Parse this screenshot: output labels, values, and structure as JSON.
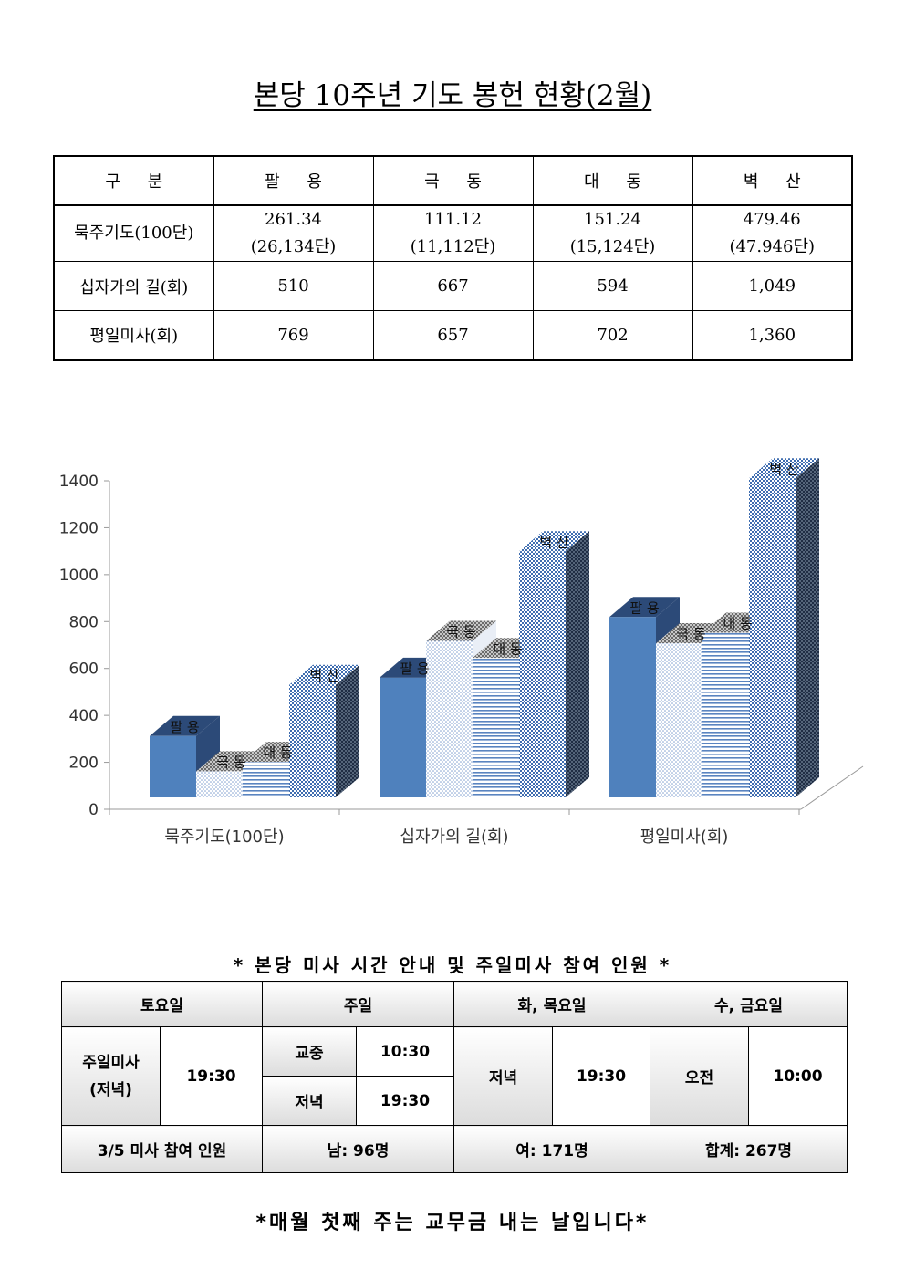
{
  "title": "본당 10주년 기도 봉헌 현황(2월)",
  "stats_table": {
    "headers": [
      "구 분",
      "팔 용",
      "극 동",
      "대 동",
      "벽 산"
    ],
    "rows": [
      {
        "label": "묵주기도(100단)",
        "cells": [
          {
            "value": "261.34",
            "sub": "(26,134단)"
          },
          {
            "value": "111.12",
            "sub": "(11,112단)"
          },
          {
            "value": "151.24",
            "sub": "(15,124단)"
          },
          {
            "value": "479.46",
            "sub": "(47.946단)"
          }
        ]
      },
      {
        "label": "십자가의 길(회)",
        "cells": [
          {
            "value": "510"
          },
          {
            "value": "667"
          },
          {
            "value": "594"
          },
          {
            "value": "1,049"
          }
        ]
      },
      {
        "label": "평일미사(회)",
        "cells": [
          {
            "value": "769"
          },
          {
            "value": "657"
          },
          {
            "value": "702"
          },
          {
            "value": "1,360"
          }
        ]
      }
    ]
  },
  "chart_data": {
    "type": "bar",
    "categories": [
      "묵주기도(100단)",
      "십자가의 길(회)",
      "평일미사(회)"
    ],
    "series": [
      {
        "name": "팔 용",
        "values": [
          261.34,
          510,
          769
        ],
        "color": "#4f81bd"
      },
      {
        "name": "극 동",
        "values": [
          111.12,
          667,
          657
        ],
        "color": "#dbe5f1"
      },
      {
        "name": "대 동",
        "values": [
          151.24,
          594,
          702
        ],
        "color": "#a9c0de"
      },
      {
        "name": "벽 산",
        "values": [
          479.46,
          1049,
          1360
        ],
        "color": "#5a7fb3"
      }
    ],
    "yticks": [
      0,
      200,
      400,
      600,
      800,
      1000,
      1200,
      1400
    ],
    "ylim": [
      0,
      1400
    ],
    "three_d": true,
    "legend": "none"
  },
  "mass_caption": "* 본당 미사 시간 안내 및 주일미사 참여 인원 *",
  "mass_table": {
    "headers": [
      "토요일",
      "주일",
      "화, 목요일",
      "수, 금요일"
    ],
    "saturday": {
      "label": "주일미사\n(저녁)",
      "time": "19:30"
    },
    "sunday": [
      {
        "label": "교중",
        "time": "10:30"
      },
      {
        "label": "저녁",
        "time": "19:30"
      }
    ],
    "tue_thu": {
      "label": "저녁",
      "time": "19:30"
    },
    "wed_fri": {
      "label": "오전",
      "time": "10:00"
    },
    "attendance": {
      "label": "3/5 미사 참여 인원",
      "male": "남: 96명",
      "female": "여: 171명",
      "total": "합계: 267명"
    }
  },
  "footer": "*매월 첫째 주는 교무금 내는 날입니다*"
}
